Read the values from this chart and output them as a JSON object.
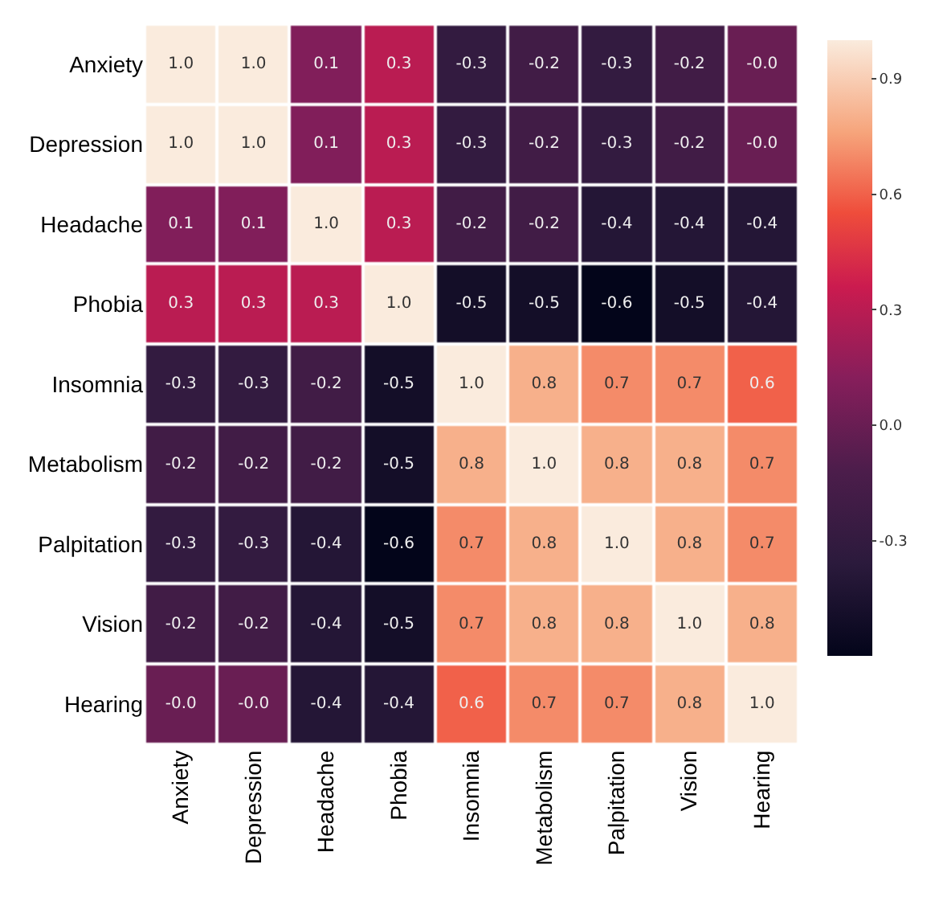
{
  "chart_data": {
    "type": "heatmap",
    "categories": [
      "Anxiety",
      "Depression",
      "Headache",
      "Phobia",
      "Insomnia",
      "Metabolism",
      "Palpitation",
      "Vision",
      "Hearing"
    ],
    "y_categories": [
      "Anxiety",
      "Depression",
      "Headache",
      "Phobia",
      "Insomnia",
      "Metabolism",
      "Palpitation",
      "Vision",
      "Hearing"
    ],
    "cells": [
      [
        1.0,
        1.0,
        0.1,
        0.3,
        -0.3,
        -0.2,
        -0.3,
        -0.2,
        0.0
      ],
      [
        1.0,
        1.0,
        0.1,
        0.3,
        -0.3,
        -0.2,
        -0.3,
        -0.2,
        0.0
      ],
      [
        0.1,
        0.1,
        1.0,
        0.3,
        -0.2,
        -0.2,
        -0.4,
        -0.4,
        -0.4
      ],
      [
        0.3,
        0.3,
        0.3,
        1.0,
        -0.5,
        -0.5,
        -0.6,
        -0.5,
        -0.4
      ],
      [
        -0.3,
        -0.3,
        -0.2,
        -0.5,
        1.0,
        0.8,
        0.7,
        0.7,
        0.6
      ],
      [
        -0.2,
        -0.2,
        -0.2,
        -0.5,
        0.8,
        1.0,
        0.8,
        0.8,
        0.7
      ],
      [
        -0.3,
        -0.3,
        -0.4,
        -0.6,
        0.7,
        0.8,
        1.0,
        0.8,
        0.7
      ],
      [
        -0.2,
        -0.2,
        -0.4,
        -0.5,
        0.7,
        0.8,
        0.8,
        1.0,
        0.8
      ],
      [
        0.0,
        0.0,
        -0.4,
        -0.4,
        0.6,
        0.7,
        0.7,
        0.8,
        1.0
      ]
    ],
    "cell_labels": [
      [
        "1.0",
        "1.0",
        "0.1",
        "0.3",
        "-0.3",
        "-0.2",
        "-0.3",
        "-0.2",
        "-0.0"
      ],
      [
        "1.0",
        "1.0",
        "0.1",
        "0.3",
        "-0.3",
        "-0.2",
        "-0.3",
        "-0.2",
        "-0.0"
      ],
      [
        "0.1",
        "0.1",
        "1.0",
        "0.3",
        "-0.2",
        "-0.2",
        "-0.4",
        "-0.4",
        "-0.4"
      ],
      [
        "0.3",
        "0.3",
        "0.3",
        "1.0",
        "-0.5",
        "-0.5",
        "-0.6",
        "-0.5",
        "-0.4"
      ],
      [
        "-0.3",
        "-0.3",
        "-0.2",
        "-0.5",
        "1.0",
        "0.8",
        "0.7",
        "0.7",
        "0.6"
      ],
      [
        "-0.2",
        "-0.2",
        "-0.2",
        "-0.5",
        "0.8",
        "1.0",
        "0.8",
        "0.8",
        "0.7"
      ],
      [
        "-0.3",
        "-0.3",
        "-0.4",
        "-0.6",
        "0.7",
        "0.8",
        "1.0",
        "0.8",
        "0.7"
      ],
      [
        "-0.2",
        "-0.2",
        "-0.4",
        "-0.5",
        "0.7",
        "0.8",
        "0.8",
        "1.0",
        "0.8"
      ],
      [
        "-0.0",
        "-0.0",
        "-0.4",
        "-0.4",
        "0.6",
        "0.7",
        "0.7",
        "0.8",
        "1.0"
      ]
    ],
    "clim": [
      -0.6,
      1.0
    ],
    "cticks": [
      -0.3,
      {
        "value": 0,
        "label": "0.0"
      },
      0.3,
      0.6,
      0.9
    ]
  }
}
